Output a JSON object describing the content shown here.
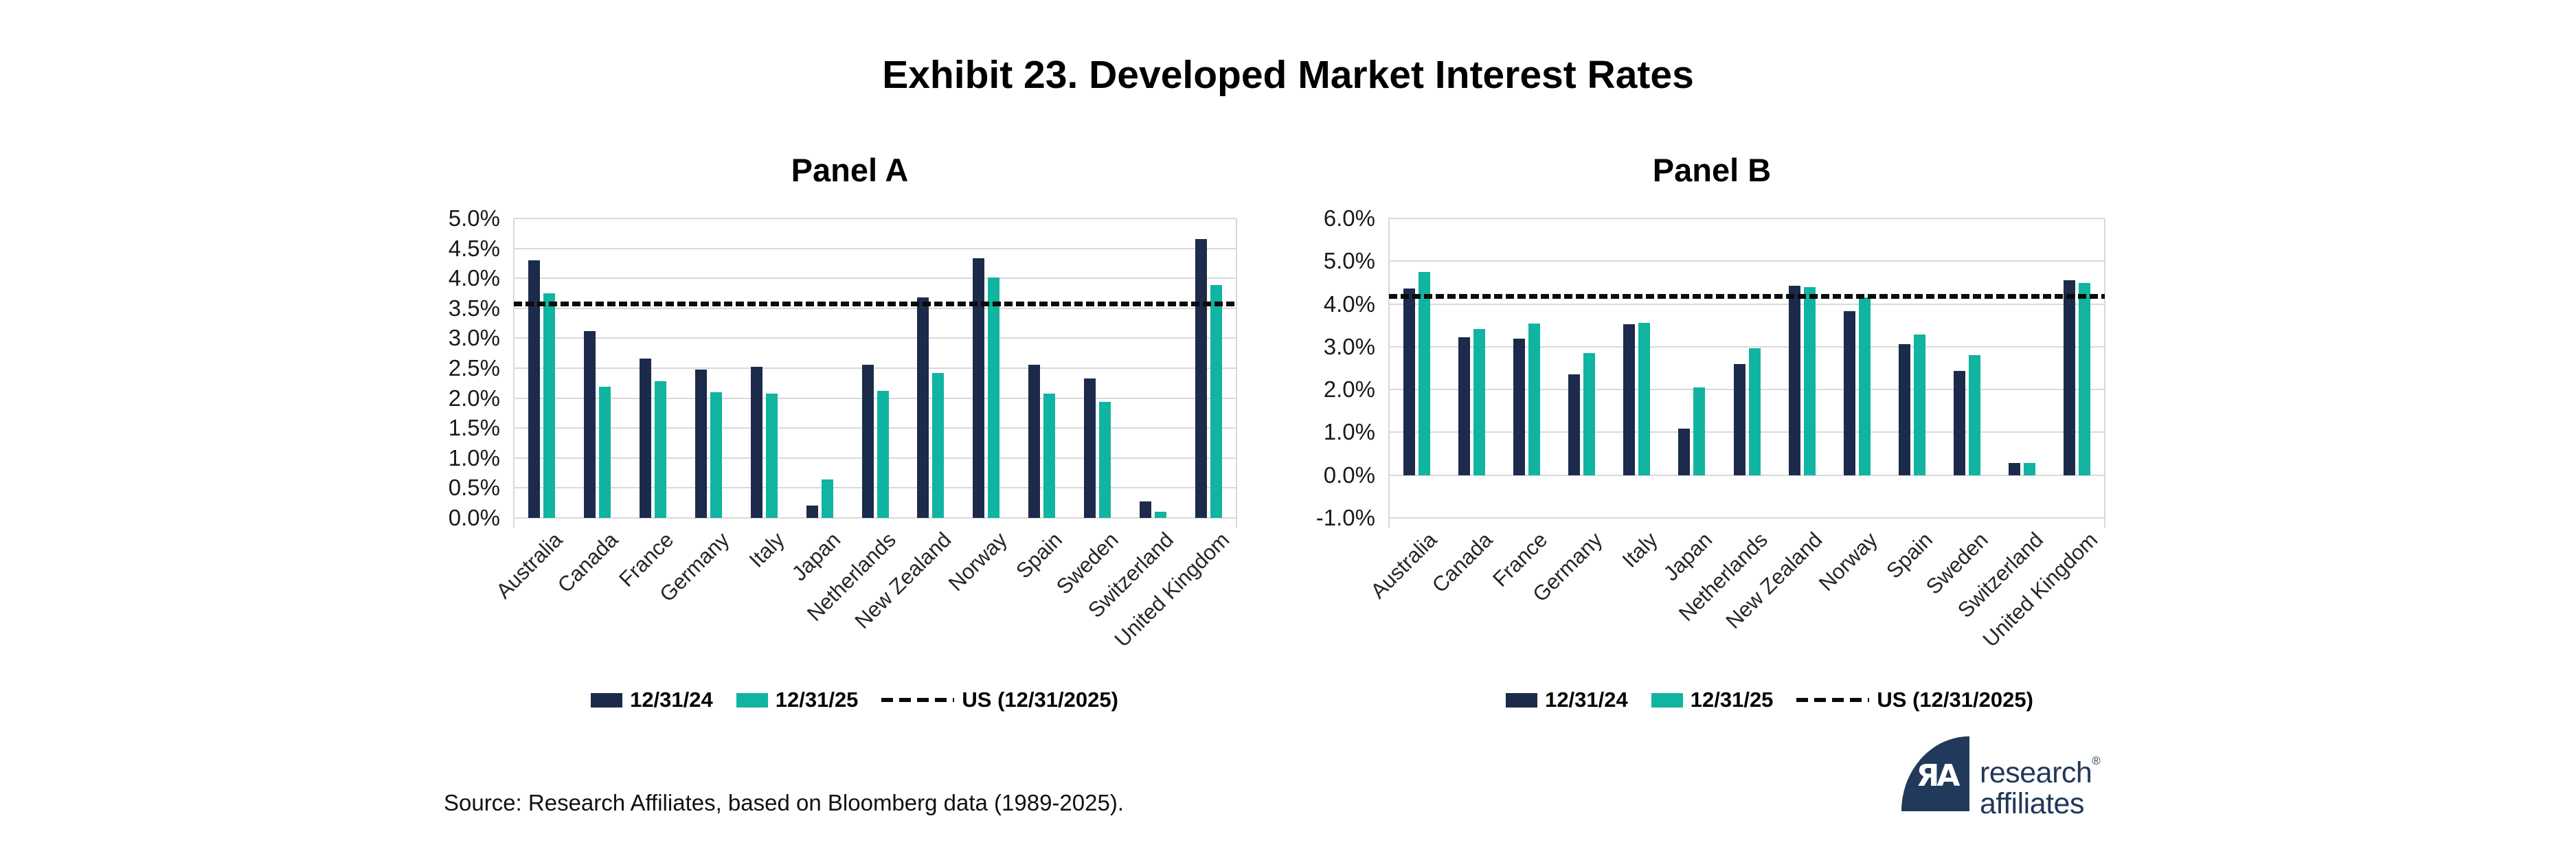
{
  "title": "Exhibit 23. Developed Market Interest Rates",
  "source": "Source: Research Affiliates, based on Bloomberg data (1989-2025).",
  "logo": {
    "monogram": "ЯA",
    "line1": "research",
    "registered": "®",
    "line2": "affiliates"
  },
  "colors": {
    "navy": "#1C2B4B",
    "teal": "#10B4A1",
    "grid": "#D9D9D9",
    "reference": "#0B0B0B",
    "logo_navy": "#21395A"
  },
  "legend": {
    "items": [
      {
        "label": "12/31/24",
        "swatch": "navy"
      },
      {
        "label": "12/31/25",
        "swatch": "teal"
      },
      {
        "label": "US (12/31/2025)",
        "swatch": "dashed"
      }
    ]
  },
  "chart_data": [
    {
      "type": "bar",
      "panel_title": "Panel A",
      "categories": [
        "Australia",
        "Canada",
        "France",
        "Germany",
        "Italy",
        "Japan",
        "Netherlands",
        "New Zealand",
        "Norway",
        "Spain",
        "Sweden",
        "Switzerland",
        "United Kingdom"
      ],
      "series": [
        {
          "name": "12/31/24",
          "values": [
            4.3,
            3.12,
            2.66,
            2.48,
            2.52,
            0.21,
            2.56,
            3.68,
            4.34,
            2.56,
            2.33,
            0.27,
            4.66
          ]
        },
        {
          "name": "12/31/25",
          "values": [
            3.75,
            2.19,
            2.28,
            2.1,
            2.07,
            0.64,
            2.12,
            2.42,
            4.01,
            2.07,
            1.94,
            0.1,
            3.89
          ]
        }
      ],
      "reference_line": {
        "label": "US (12/31/2025)",
        "value": 3.58
      },
      "ylim": [
        0,
        5
      ],
      "ytick_step": 0.5,
      "ytick_labels": [
        "0.0%",
        "0.5%",
        "1.0%",
        "1.5%",
        "2.0%",
        "2.5%",
        "3.0%",
        "3.5%",
        "4.0%",
        "4.5%",
        "5.0%"
      ],
      "grid": true,
      "legend_position": "bottom"
    },
    {
      "type": "bar",
      "panel_title": "Panel B",
      "categories": [
        "Australia",
        "Canada",
        "France",
        "Germany",
        "Italy",
        "Japan",
        "Netherlands",
        "New Zealand",
        "Norway",
        "Spain",
        "Sweden",
        "Switzerland",
        "United Kingdom"
      ],
      "series": [
        {
          "name": "12/31/24",
          "values": [
            4.36,
            3.22,
            3.19,
            2.36,
            3.52,
            1.08,
            2.6,
            4.43,
            3.83,
            3.06,
            2.43,
            0.28,
            4.56
          ]
        },
        {
          "name": "12/31/25",
          "values": [
            4.75,
            3.41,
            3.54,
            2.85,
            3.56,
            2.05,
            2.96,
            4.39,
            4.15,
            3.29,
            2.8,
            0.28,
            4.49
          ]
        }
      ],
      "reference_line": {
        "label": "US (12/31/2025)",
        "value": 4.18
      },
      "ylim": [
        -1,
        6
      ],
      "ytick_step": 1.0,
      "ytick_labels": [
        "-1.0%",
        "0.0%",
        "1.0%",
        "2.0%",
        "3.0%",
        "4.0%",
        "5.0%",
        "6.0%"
      ],
      "grid": true,
      "legend_position": "bottom"
    }
  ]
}
